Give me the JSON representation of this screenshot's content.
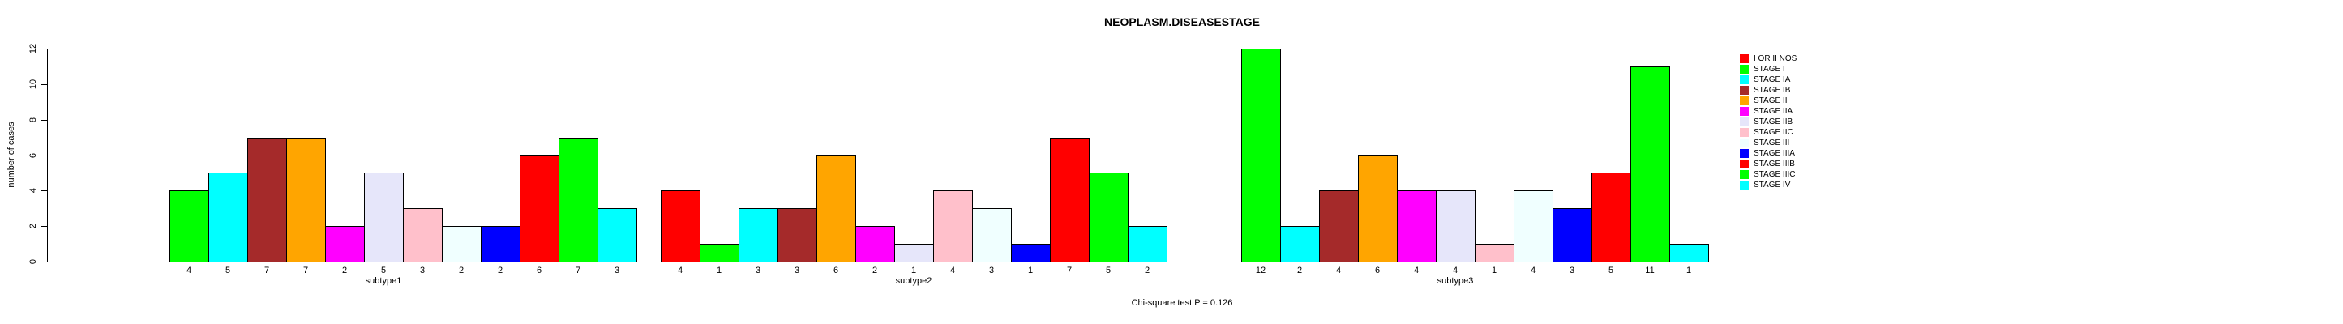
{
  "chart_data": {
    "type": "bar",
    "title": "NEOPLASM.DISEASESTAGE",
    "ylabel": "number of cases",
    "annotation": "Chi-square test P = 0.126",
    "ylim": [
      0,
      12
    ],
    "yticks": [
      0,
      2,
      4,
      6,
      8,
      10,
      12
    ],
    "grid": false,
    "legend_position": "right",
    "bar_value_labels_shown": true,
    "zero_bars_hidden": true,
    "categories": [
      "I OR II NOS",
      "STAGE I",
      "STAGE IA",
      "STAGE IB",
      "STAGE II",
      "STAGE IIA",
      "STAGE IIB",
      "STAGE IIC",
      "STAGE III",
      "STAGE IIIA",
      "STAGE IIIB",
      "STAGE IIIC",
      "STAGE IV"
    ],
    "colors": [
      "#FF0000",
      "#00FF00",
      "#00FFFF",
      "#A52A2A",
      "#FFA500",
      "#FF00FF",
      "#E6E6FA",
      "#FFC0CB",
      "#F0FFFF",
      "#0000FF",
      "#FF0000",
      "#00FF00",
      "#00FFFF"
    ],
    "groups": [
      {
        "label": "subtype1",
        "values": [
          0,
          4,
          5,
          7,
          7,
          2,
          5,
          3,
          2,
          2,
          6,
          7,
          3
        ]
      },
      {
        "label": "subtype2",
        "values": [
          4,
          1,
          3,
          3,
          6,
          2,
          1,
          4,
          3,
          1,
          7,
          5,
          2
        ]
      },
      {
        "label": "subtype3",
        "values": [
          0,
          12,
          2,
          4,
          6,
          4,
          4,
          1,
          4,
          3,
          5,
          11,
          1
        ]
      }
    ]
  }
}
